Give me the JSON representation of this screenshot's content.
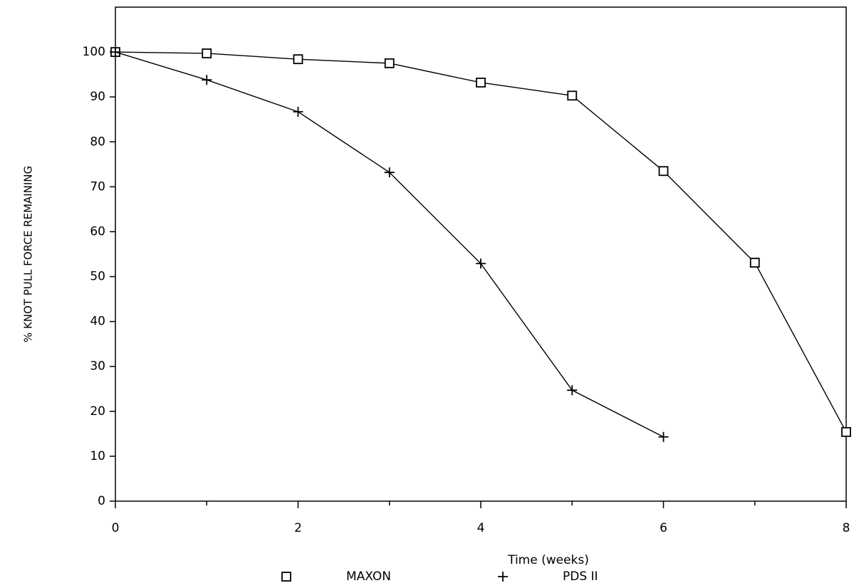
{
  "chart_data": {
    "type": "line",
    "x_label": "Time (weeks)",
    "y_label": "% KNOT PULL FORCE REMAINING",
    "x": [
      0,
      1,
      2,
      3,
      4,
      5,
      6,
      7,
      8
    ],
    "series": [
      {
        "name": "MAXON",
        "color": "#000000",
        "marker": "square",
        "values": [
          100,
          99.7,
          98.4,
          97.5,
          93.2,
          90.3,
          73.5,
          53.1,
          15.4
        ]
      },
      {
        "name": "PDS II",
        "color": "#000000",
        "marker": "plus",
        "values": [
          100,
          93.8,
          86.7,
          73.2,
          52.9,
          24.7,
          14.3,
          null,
          null
        ]
      }
    ],
    "xlim": [
      0,
      8
    ],
    "xticks": [
      0,
      2,
      4,
      6,
      8
    ],
    "xminorticks": [
      1,
      3,
      5,
      7
    ],
    "ylim": [
      0,
      110
    ],
    "yticks": [
      0,
      10,
      20,
      30,
      40,
      50,
      60,
      70,
      80,
      90,
      100
    ],
    "grid": false,
    "legend": "bottom"
  }
}
